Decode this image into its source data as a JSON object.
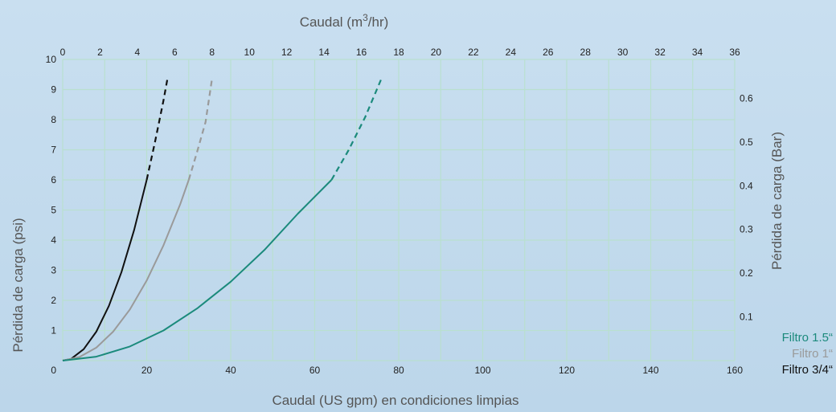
{
  "chart_data": {
    "type": "line",
    "title": "",
    "xlabel": "Caudal (US gpm) en condiciones limpias",
    "ylabel": "Pérdida de carga (psi)",
    "x2label_main": "Caudal (m",
    "x2label_sup": "3",
    "x2label_tail": "/hr)",
    "y2label": "Pérdida de carga (Bar)",
    "xlim": [
      0,
      160
    ],
    "ylim": [
      0,
      10
    ],
    "x2lim": [
      0,
      36
    ],
    "y2lim": [
      0,
      0.689
    ],
    "x_ticks": [
      0,
      20,
      40,
      60,
      80,
      100,
      120,
      140,
      160
    ],
    "y_ticks": [
      0,
      1,
      2,
      3,
      4,
      5,
      6,
      7,
      8,
      9,
      10
    ],
    "x2_ticks": [
      0,
      2,
      4,
      6,
      8,
      10,
      12,
      14,
      16,
      18,
      20,
      22,
      24,
      26,
      28,
      30,
      32,
      34,
      36
    ],
    "y2_ticks": [
      "0.1",
      "0.2",
      "0.3",
      "0.4",
      "0.5",
      "0.6"
    ],
    "grid": true,
    "legend_position": "bottom-right",
    "series": [
      {
        "name": "Filtro 3/4“",
        "color": "#111111",
        "solid": {
          "x": [
            0,
            2,
            5,
            8,
            11,
            14,
            17,
            20
          ],
          "y": [
            0,
            0.06,
            0.38,
            0.96,
            1.82,
            2.94,
            4.33,
            6.0
          ]
        },
        "dashed": {
          "x": [
            20,
            22,
            24,
            25
          ],
          "y": [
            6.0,
            7.27,
            8.64,
            9.4
          ]
        }
      },
      {
        "name": "Filtro 1“",
        "color": "#9a9a9a",
        "solid": {
          "x": [
            0,
            4,
            8,
            12,
            16,
            20,
            24,
            28,
            30
          ],
          "y": [
            0,
            0.12,
            0.43,
            0.96,
            1.7,
            2.66,
            3.83,
            5.2,
            6.0
          ]
        },
        "dashed": {
          "x": [
            30,
            32,
            34,
            35.6
          ],
          "y": [
            6.0,
            6.93,
            7.92,
            9.4
          ]
        }
      },
      {
        "name": "Filtro 1.5“",
        "color": "#1b8a7c",
        "solid": {
          "x": [
            0,
            8,
            16,
            24,
            32,
            40,
            48,
            56,
            64
          ],
          "y": [
            0,
            0.13,
            0.47,
            1.0,
            1.73,
            2.62,
            3.67,
            4.88,
            6.0
          ]
        },
        "dashed": {
          "x": [
            64,
            68,
            72,
            76
          ],
          "y": [
            6.0,
            6.97,
            8.08,
            9.4
          ]
        }
      }
    ]
  }
}
